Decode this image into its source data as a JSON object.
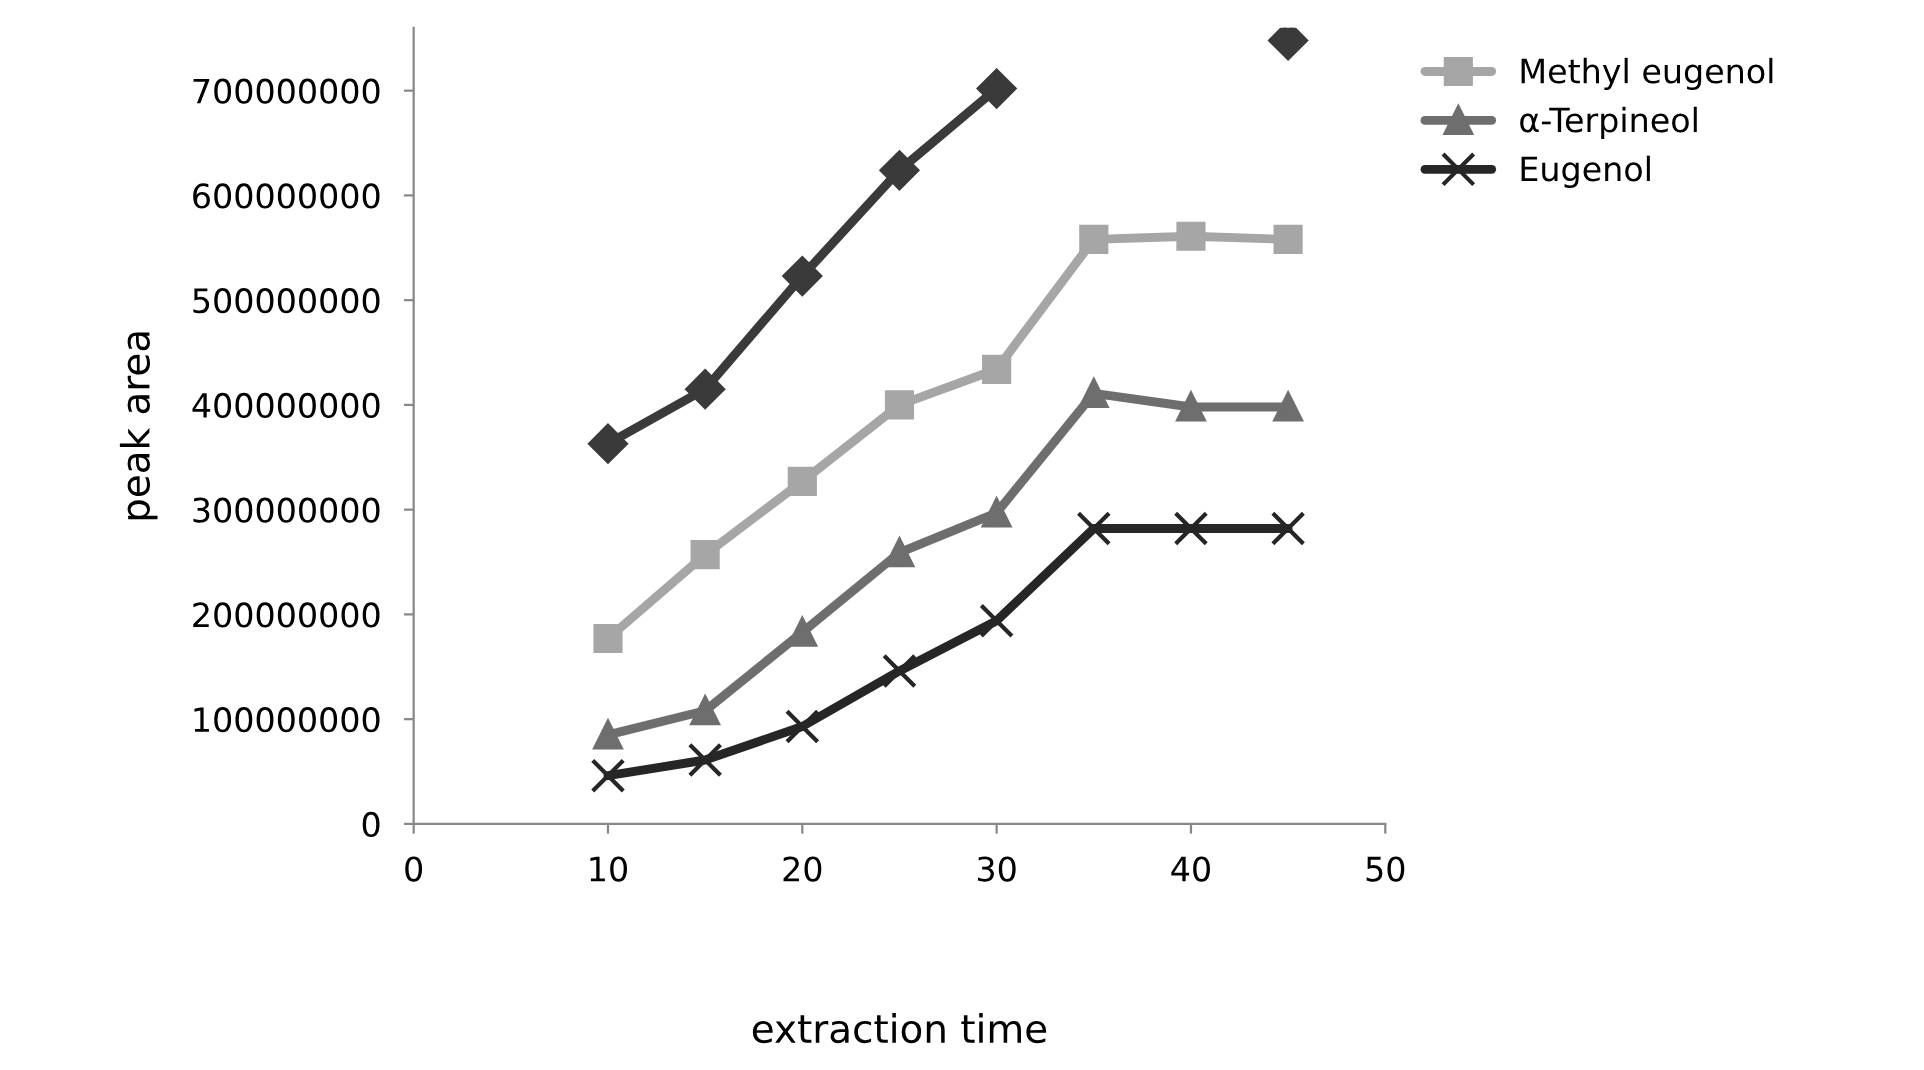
{
  "chart_data": {
    "type": "line",
    "xlabel": "extraction time",
    "ylabel": "peak area",
    "x": [
      10,
      15,
      20,
      25,
      30,
      35,
      40,
      45
    ],
    "series": [
      {
        "color": "#3a3a3a",
        "marker": "diamond",
        "values": [
          363000000,
          415000000,
          523000000,
          624000000,
          702000000,
          null,
          null,
          748000000
        ]
      },
      {
        "name": "Methyl eugenol",
        "color": "#a6a6a6",
        "marker": "square",
        "values": [
          177000000,
          257000000,
          327000000,
          400000000,
          434000000,
          558000000,
          561000000,
          558000000
        ]
      },
      {
        "name": "α-Terpineol",
        "color": "#6e6e6e",
        "marker": "triangle",
        "values": [
          85000000,
          108000000,
          183000000,
          259000000,
          297000000,
          411000000,
          398000000,
          398000000
        ]
      },
      {
        "name": "Eugenol",
        "color": "#262626",
        "marker": "cross",
        "values": [
          46000000,
          61000000,
          93000000,
          146000000,
          194000000,
          282000000,
          282000000,
          282000000
        ]
      }
    ],
    "xlim": [
      0,
      50
    ],
    "xticks": [
      0,
      10,
      20,
      30,
      40,
      50
    ],
    "ylim": [
      0,
      760000000
    ],
    "yticks": [
      0,
      100000000,
      200000000,
      300000000,
      400000000,
      500000000,
      600000000,
      700000000
    ],
    "grid": false,
    "legend": "top right"
  }
}
